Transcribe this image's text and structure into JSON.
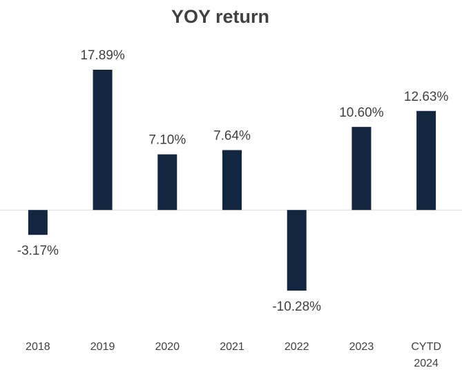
{
  "chart_data": {
    "type": "bar",
    "title": "YOY return",
    "categories": [
      "2018",
      "2019",
      "2020",
      "2021",
      "2022",
      "2023",
      "CYTD 2024"
    ],
    "values": [
      -3.17,
      17.89,
      7.1,
      7.64,
      -10.28,
      10.6,
      12.63
    ],
    "value_labels": [
      "-3.17%",
      "17.89%",
      "7.10%",
      "7.64%",
      "-10.28%",
      "10.60%",
      "12.63%"
    ],
    "color": "#132641"
  }
}
